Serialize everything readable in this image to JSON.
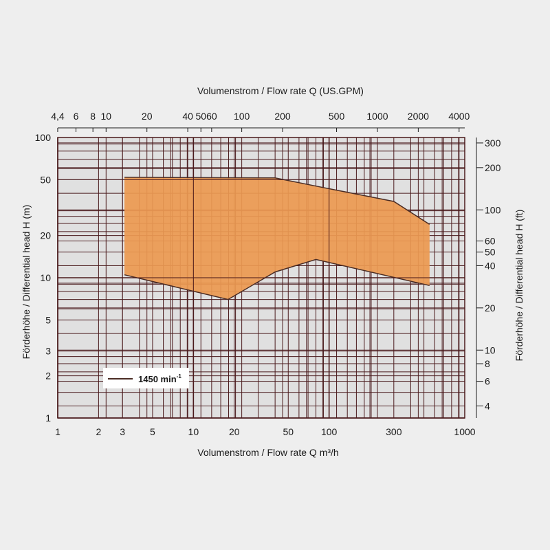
{
  "chart_data": {
    "type": "area",
    "x_top_title": "Volumenstrom / Flow rate Q (US.GPM)",
    "x_bottom_title": "Volumenstrom / Flow rate Q m³/h",
    "y_left_title": "Förderhöhe / Differential head H (m)",
    "y_right_title": "Förderhöhe / Differential head H (ft)",
    "x_scale": "log",
    "y_scale": "log",
    "xlim": [
      1,
      1000
    ],
    "ylim": [
      1,
      100
    ],
    "grid": true,
    "x_ticks_bottom": [
      {
        "v": 1,
        "t": "1"
      },
      {
        "v": 2,
        "t": "2"
      },
      {
        "v": 3,
        "t": "3"
      },
      {
        "v": 5,
        "t": "5"
      },
      {
        "v": 10,
        "t": "10"
      },
      {
        "v": 20,
        "t": "20"
      },
      {
        "v": 50,
        "t": "50"
      },
      {
        "v": 100,
        "t": "100"
      },
      {
        "v": 300,
        "t": "300"
      },
      {
        "v": 1000,
        "t": "1000"
      }
    ],
    "x_ticks_top": [
      {
        "v": 4.4,
        "t": "4,4"
      },
      {
        "v": 6,
        "t": "6"
      },
      {
        "v": 8,
        "t": "8"
      },
      {
        "v": 10,
        "t": "10"
      },
      {
        "v": 20,
        "t": "20"
      },
      {
        "v": 40,
        "t": "40"
      },
      {
        "v": 50,
        "t": "50"
      },
      {
        "v": 60,
        "t": "60"
      },
      {
        "v": 100,
        "t": "100"
      },
      {
        "v": 200,
        "t": "200"
      },
      {
        "v": 500,
        "t": "500"
      },
      {
        "v": 1000,
        "t": "1000"
      },
      {
        "v": 2000,
        "t": "2000"
      },
      {
        "v": 4000,
        "t": "4000"
      }
    ],
    "y_ticks_left": [
      {
        "v": 1,
        "t": "1"
      },
      {
        "v": 2,
        "t": "2"
      },
      {
        "v": 3,
        "t": "3"
      },
      {
        "v": 5,
        "t": "5"
      },
      {
        "v": 10,
        "t": "10"
      },
      {
        "v": 20,
        "t": "20"
      },
      {
        "v": 50,
        "t": "50"
      },
      {
        "v": 100,
        "t": "100"
      }
    ],
    "y_ticks_right": [
      {
        "v": 4,
        "t": "4"
      },
      {
        "v": 6,
        "t": "6"
      },
      {
        "v": 8,
        "t": "8"
      },
      {
        "v": 10,
        "t": "10"
      },
      {
        "v": 20,
        "t": "20"
      },
      {
        "v": 40,
        "t": "40"
      },
      {
        "v": 50,
        "t": "50"
      },
      {
        "v": 60,
        "t": "60"
      },
      {
        "v": 100,
        "t": "100"
      },
      {
        "v": 200,
        "t": "200"
      },
      {
        "v": 300,
        "t": "300"
      }
    ],
    "series": [
      {
        "name": "1450 min⁻¹",
        "upper": [
          {
            "x": 3.1,
            "y": 52
          },
          {
            "x": 40,
            "y": 51.5
          },
          {
            "x": 90,
            "y": 44
          },
          {
            "x": 300,
            "y": 35
          },
          {
            "x": 550,
            "y": 24
          }
        ],
        "lower": [
          {
            "x": 550,
            "y": 8.8
          },
          {
            "x": 80,
            "y": 13.5
          },
          {
            "x": 40,
            "y": 11
          },
          {
            "x": 18,
            "y": 7
          },
          {
            "x": 3.1,
            "y": 10.5
          }
        ]
      }
    ],
    "legend": {
      "position": "bottom-left",
      "label": "1450 min",
      "superscript": "-1"
    },
    "colors": {
      "fill": "#ec9a52",
      "outline": "#4a2c24",
      "grid": "#4a1a1c",
      "plot_bg": "#e0e0e0",
      "page_bg": "#eeeeee",
      "text": "#1a1a1a"
    }
  }
}
